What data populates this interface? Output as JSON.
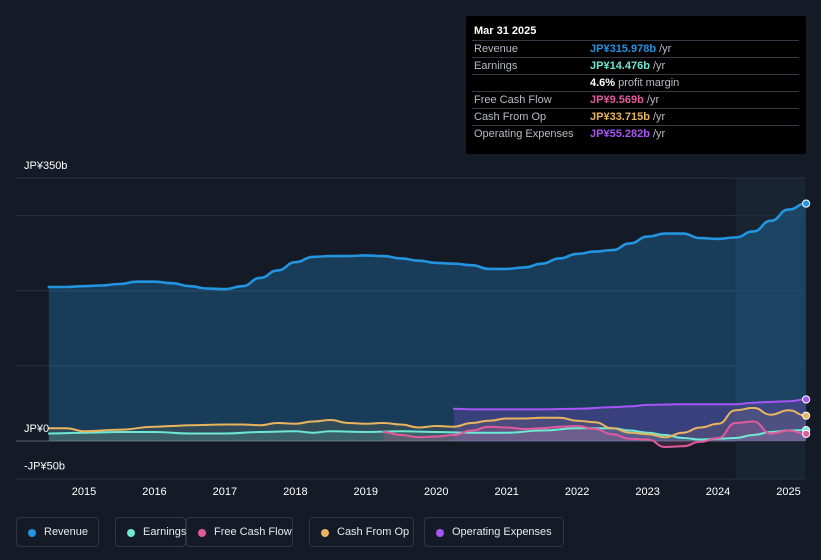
{
  "colors": {
    "revenue": "#2394df",
    "earnings": "#6ee7d3",
    "free_cash_flow": "#e15a9d",
    "cash_from_op": "#e8b45f",
    "operating_expenses": "#a855f7",
    "background": "#151b26"
  },
  "tooltip": {
    "date": "Mar 31 2025",
    "rows": [
      {
        "label": "Revenue",
        "value": "JP¥315.978b",
        "unit": "/yr",
        "color": "#2394df"
      },
      {
        "label": "Earnings",
        "value": "JP¥14.476b",
        "unit": "/yr",
        "color": "#6ee7d3"
      },
      {
        "label": "",
        "value": "4.6%",
        "unit": "profit margin",
        "color": "#ffffff"
      },
      {
        "label": "Free Cash Flow",
        "value": "JP¥9.569b",
        "unit": "/yr",
        "color": "#e15a9d"
      },
      {
        "label": "Cash From Op",
        "value": "JP¥33.715b",
        "unit": "/yr",
        "color": "#e8b45f"
      },
      {
        "label": "Operating Expenses",
        "value": "JP¥55.282b",
        "unit": "/yr",
        "color": "#a855f7"
      }
    ]
  },
  "legend": [
    {
      "label": "Revenue",
      "color": "#2394df",
      "icon": "revenue-dot-icon"
    },
    {
      "label": "Earnings",
      "color": "#6ee7d3",
      "icon": "earnings-dot-icon"
    },
    {
      "label": "Free Cash Flow",
      "color": "#e15a9d",
      "icon": "free-cash-flow-dot-icon"
    },
    {
      "label": "Cash From Op",
      "color": "#e8b45f",
      "icon": "cash-from-op-dot-icon"
    },
    {
      "label": "Operating Expenses",
      "color": "#a855f7",
      "icon": "operating-expenses-dot-icon"
    }
  ],
  "chart_data": {
    "type": "area",
    "title": "",
    "y_unit": "JP¥ billions",
    "ylim": [
      -50,
      350
    ],
    "y_tick_labels": [
      {
        "value": 350,
        "label": "JP¥350b"
      },
      {
        "value": 0,
        "label": "JP¥0"
      },
      {
        "value": -50,
        "label": "-JP¥50b"
      }
    ],
    "gridlines": [
      350,
      300,
      200,
      100,
      0
    ],
    "xlim": [
      2014.35,
      2025.3
    ],
    "x_ticks": [
      2015,
      2016,
      2017,
      2018,
      2019,
      2020,
      2021,
      2022,
      2023,
      2024,
      2025
    ],
    "x_tick_labels": [
      "2015",
      "2016",
      "2017",
      "2018",
      "2019",
      "2020",
      "2021",
      "2022",
      "2023",
      "2024",
      "2025"
    ],
    "highlight_range": [
      2024.25,
      2025.25
    ],
    "series": [
      {
        "name": "Revenue",
        "key": "revenue",
        "points": [
          [
            2014.5,
            205
          ],
          [
            2014.75,
            205
          ],
          [
            2015.0,
            206
          ],
          [
            2015.25,
            207
          ],
          [
            2015.5,
            209
          ],
          [
            2015.75,
            212
          ],
          [
            2016.0,
            212
          ],
          [
            2016.25,
            210
          ],
          [
            2016.5,
            206
          ],
          [
            2016.75,
            203
          ],
          [
            2017.0,
            202
          ],
          [
            2017.25,
            206
          ],
          [
            2017.5,
            217
          ],
          [
            2017.75,
            227
          ],
          [
            2018.0,
            238
          ],
          [
            2018.25,
            245
          ],
          [
            2018.5,
            246
          ],
          [
            2018.75,
            246
          ],
          [
            2019.0,
            247
          ],
          [
            2019.25,
            246
          ],
          [
            2019.5,
            243
          ],
          [
            2019.75,
            240
          ],
          [
            2020.0,
            237
          ],
          [
            2020.25,
            236
          ],
          [
            2020.5,
            234
          ],
          [
            2020.75,
            229
          ],
          [
            2021.0,
            229
          ],
          [
            2021.25,
            231
          ],
          [
            2021.5,
            236
          ],
          [
            2021.75,
            243
          ],
          [
            2022.0,
            249
          ],
          [
            2022.25,
            252
          ],
          [
            2022.5,
            254
          ],
          [
            2022.75,
            263
          ],
          [
            2023.0,
            272
          ],
          [
            2023.25,
            276
          ],
          [
            2023.5,
            276
          ],
          [
            2023.75,
            270
          ],
          [
            2024.0,
            269
          ],
          [
            2024.25,
            271
          ],
          [
            2024.5,
            279
          ],
          [
            2024.75,
            293
          ],
          [
            2025.0,
            308
          ],
          [
            2025.25,
            316
          ]
        ]
      },
      {
        "name": "Earnings",
        "key": "earnings",
        "points": [
          [
            2014.5,
            10
          ],
          [
            2015.0,
            11
          ],
          [
            2015.5,
            12
          ],
          [
            2016.0,
            12
          ],
          [
            2016.5,
            10
          ],
          [
            2017.0,
            10
          ],
          [
            2017.5,
            12
          ],
          [
            2018.0,
            13
          ],
          [
            2018.25,
            11
          ],
          [
            2018.5,
            13
          ],
          [
            2019.0,
            12
          ],
          [
            2019.5,
            13
          ],
          [
            2020.0,
            12
          ],
          [
            2020.5,
            11
          ],
          [
            2021.0,
            11
          ],
          [
            2021.5,
            14
          ],
          [
            2022.0,
            17
          ],
          [
            2022.25,
            17
          ],
          [
            2022.5,
            17
          ],
          [
            2022.75,
            14
          ],
          [
            2023.0,
            11
          ],
          [
            2023.25,
            8
          ],
          [
            2023.5,
            4
          ],
          [
            2023.75,
            2
          ],
          [
            2024.0,
            3
          ],
          [
            2024.25,
            4
          ],
          [
            2024.5,
            8
          ],
          [
            2024.75,
            12
          ],
          [
            2025.0,
            14
          ],
          [
            2025.25,
            14.5
          ]
        ]
      },
      {
        "name": "Free Cash Flow",
        "key": "free_cash_flow",
        "points": [
          [
            2019.25,
            12
          ],
          [
            2019.5,
            8
          ],
          [
            2019.75,
            5
          ],
          [
            2020.0,
            6
          ],
          [
            2020.25,
            8
          ],
          [
            2020.5,
            14
          ],
          [
            2020.75,
            19
          ],
          [
            2021.0,
            18
          ],
          [
            2021.25,
            16
          ],
          [
            2021.5,
            17
          ],
          [
            2021.75,
            19
          ],
          [
            2022.0,
            20
          ],
          [
            2022.25,
            16
          ],
          [
            2022.5,
            9
          ],
          [
            2022.75,
            3
          ],
          [
            2023.0,
            2
          ],
          [
            2023.25,
            -8
          ],
          [
            2023.5,
            -7
          ],
          [
            2023.75,
            -1
          ],
          [
            2024.0,
            4
          ],
          [
            2024.25,
            24
          ],
          [
            2024.5,
            26
          ],
          [
            2024.75,
            10
          ],
          [
            2025.0,
            14
          ],
          [
            2025.25,
            9.5
          ]
        ]
      },
      {
        "name": "Cash From Op",
        "key": "cash_from_op",
        "points": [
          [
            2014.5,
            17
          ],
          [
            2014.75,
            17
          ],
          [
            2015.0,
            13
          ],
          [
            2015.5,
            15
          ],
          [
            2016.0,
            19
          ],
          [
            2016.25,
            20
          ],
          [
            2016.5,
            21
          ],
          [
            2017.0,
            22
          ],
          [
            2017.25,
            22
          ],
          [
            2017.5,
            21
          ],
          [
            2017.75,
            24
          ],
          [
            2018.0,
            23
          ],
          [
            2018.25,
            26
          ],
          [
            2018.5,
            28
          ],
          [
            2018.75,
            24
          ],
          [
            2019.0,
            23
          ],
          [
            2019.25,
            24
          ],
          [
            2019.5,
            22
          ],
          [
            2019.75,
            18
          ],
          [
            2020.0,
            20
          ],
          [
            2020.25,
            19
          ],
          [
            2020.5,
            24
          ],
          [
            2020.75,
            27
          ],
          [
            2021.0,
            30
          ],
          [
            2021.25,
            30
          ],
          [
            2021.5,
            31
          ],
          [
            2021.75,
            31
          ],
          [
            2022.0,
            27
          ],
          [
            2022.25,
            25
          ],
          [
            2022.5,
            17
          ],
          [
            2022.75,
            11
          ],
          [
            2023.0,
            9
          ],
          [
            2023.25,
            5
          ],
          [
            2023.5,
            11
          ],
          [
            2023.75,
            18
          ],
          [
            2024.0,
            23
          ],
          [
            2024.25,
            41
          ],
          [
            2024.5,
            44
          ],
          [
            2024.75,
            35
          ],
          [
            2025.0,
            41
          ],
          [
            2025.25,
            33.7
          ]
        ]
      },
      {
        "name": "Operating Expenses",
        "key": "operating_expenses",
        "points": [
          [
            2020.25,
            43
          ],
          [
            2020.5,
            42
          ],
          [
            2020.75,
            42
          ],
          [
            2021.0,
            42
          ],
          [
            2021.5,
            42
          ],
          [
            2022.0,
            43
          ],
          [
            2022.5,
            45
          ],
          [
            2022.75,
            46
          ],
          [
            2023.0,
            48
          ],
          [
            2023.5,
            49
          ],
          [
            2024.0,
            49
          ],
          [
            2024.25,
            49
          ],
          [
            2024.5,
            51
          ],
          [
            2024.75,
            52
          ],
          [
            2025.0,
            53
          ],
          [
            2025.25,
            55.3
          ]
        ]
      }
    ]
  }
}
